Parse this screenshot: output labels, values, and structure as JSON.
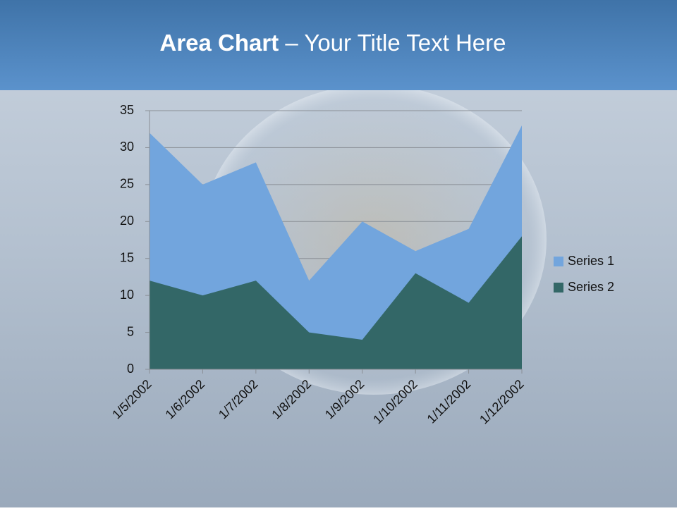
{
  "chart_data": {
    "type": "area",
    "title": [
      "Area Chart",
      "– Your Title Text Here"
    ],
    "categories": [
      "1/5/2002",
      "1/6/2002",
      "1/7/2002",
      "1/8/2002",
      "1/9/2002",
      "1/10/2002",
      "1/11/2002",
      "1/12/2002"
    ],
    "series": [
      {
        "name": "Series 1",
        "color": "#72a5dd",
        "values": [
          32,
          25,
          28,
          12,
          20,
          16,
          19,
          33
        ]
      },
      {
        "name": "Series 2",
        "color": "#336767",
        "values": [
          12,
          10,
          12,
          5,
          4,
          13,
          9,
          18
        ]
      }
    ],
    "ylim": [
      0,
      35
    ],
    "yticks": [
      0,
      5,
      10,
      15,
      20,
      25,
      30,
      35
    ],
    "grid": true,
    "legend": "right"
  }
}
